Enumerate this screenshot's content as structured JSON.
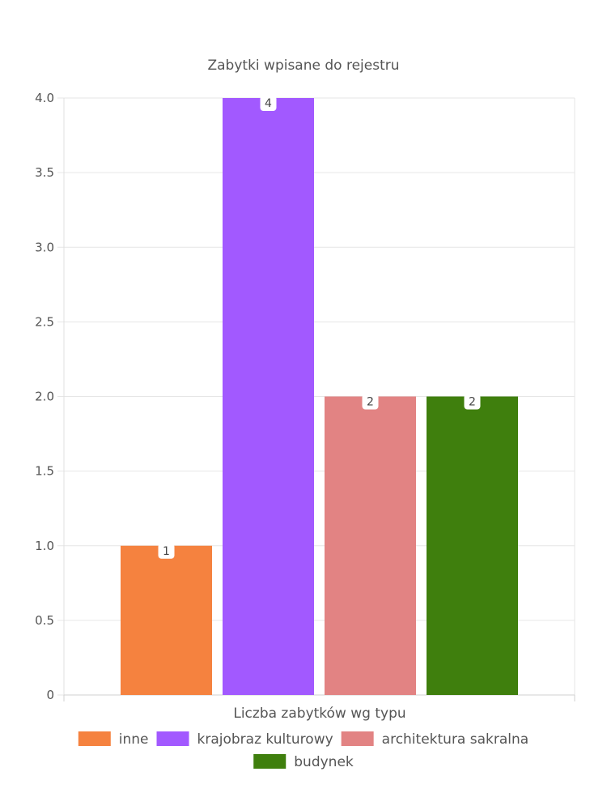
{
  "chart_data": {
    "type": "bar",
    "title": "Zabytki wpisane do rejestru",
    "xlabel": "Liczba zabytków wg typu",
    "ylabel": "",
    "ylim": [
      0,
      4
    ],
    "yticks": [
      "0",
      "0.5",
      "1.0",
      "1.5",
      "2.0",
      "2.5",
      "3.0",
      "3.5",
      "4.0"
    ],
    "grid": true,
    "legend_position": "bottom",
    "series": [
      {
        "name": "inne",
        "value": 1,
        "label": "1",
        "color": "#f5823f"
      },
      {
        "name": "krajobraz kulturowy",
        "value": 4,
        "label": "4",
        "color": "#a259ff"
      },
      {
        "name": "architektura sakralna",
        "value": 2,
        "label": "2",
        "color": "#e28383"
      },
      {
        "name": "budynek",
        "value": 2,
        "label": "2",
        "color": "#3f7f0d"
      }
    ]
  }
}
